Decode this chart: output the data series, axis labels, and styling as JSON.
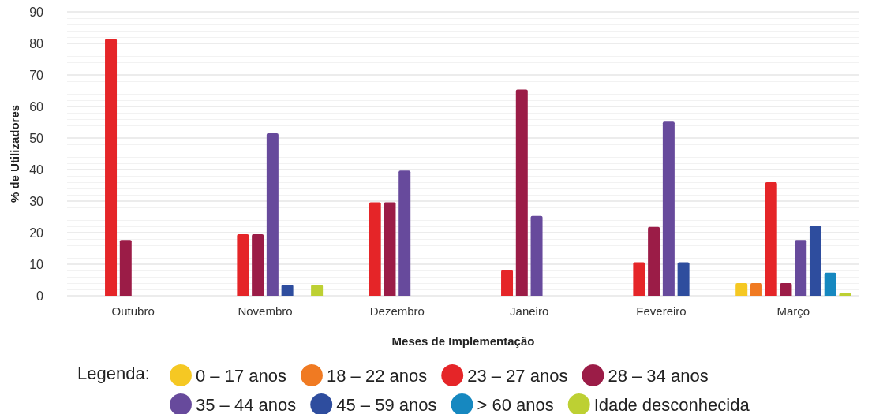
{
  "chart_data": {
    "type": "bar",
    "xlabel": "Meses de Implementação",
    "ylabel": "% de Utilizadores",
    "legend_title": "Legenda:",
    "categories": [
      "Outubro",
      "Novembro",
      "Dezembro",
      "Janeiro",
      "Fevereiro",
      "Março"
    ],
    "series": [
      {
        "name": "0 – 17 anos",
        "color": "#f5c823",
        "values": [
          null,
          null,
          null,
          null,
          null,
          4
        ]
      },
      {
        "name": "18 – 22 anos",
        "color": "#f07a22",
        "values": [
          null,
          null,
          null,
          null,
          null,
          4
        ]
      },
      {
        "name": "23 – 27 anos",
        "color": "#e52528",
        "values": [
          81.5,
          19.5,
          29.6,
          8.1,
          10.6,
          36
        ]
      },
      {
        "name": "28 – 34 anos",
        "color": "#9b1c47",
        "values": [
          17.7,
          19.5,
          29.6,
          65.4,
          21.8,
          4
        ]
      },
      {
        "name": "35 – 44 anos",
        "color": "#674a9c",
        "values": [
          null,
          51.5,
          39.7,
          25.3,
          55.2,
          17.7
        ]
      },
      {
        "name": "45 – 59 anos",
        "color": "#2e4d9e",
        "values": [
          null,
          3.5,
          null,
          null,
          10.6,
          22.2
        ]
      },
      {
        "name": "> 60 anos",
        "color": "#1688c0",
        "values": [
          null,
          null,
          null,
          null,
          null,
          7.3
        ]
      },
      {
        "name": "Idade desconhecida",
        "color": "#bdd033",
        "values": [
          null,
          3.5,
          null,
          null,
          null,
          0.9
        ]
      }
    ],
    "ylim": [
      0,
      90
    ],
    "yticks": [
      0,
      10,
      20,
      30,
      40,
      50,
      60,
      70,
      80,
      90
    ],
    "grid": true,
    "legend": "bottom"
  }
}
